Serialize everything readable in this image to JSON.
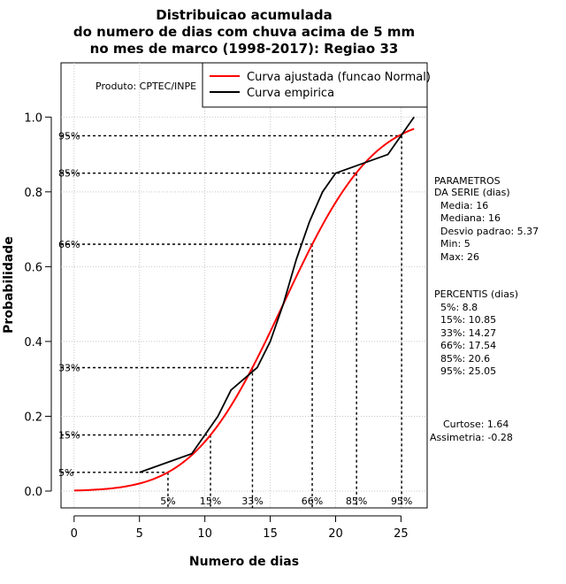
{
  "chart_data": {
    "type": "line",
    "title_lines": [
      "Distribuicao acumulada",
      "do numero de dias com chuva acima de 5 mm",
      "no mes de marco (1998-2017): Regiao 33"
    ],
    "xlabel": "Numero de dias",
    "ylabel": "Probabilidade",
    "xlim": [
      -1,
      27
    ],
    "ylim": [
      -0.045,
      1.145
    ],
    "xticks": [
      0,
      5,
      10,
      15,
      20,
      25
    ],
    "yticks": [
      0.0,
      0.2,
      0.4,
      0.6,
      0.8,
      1.0
    ],
    "xtick_labels": [
      "0",
      "5",
      "10",
      "15",
      "20",
      "25"
    ],
    "ytick_labels": [
      "0.0",
      "0.2",
      "0.4",
      "0.6",
      "0.8",
      "1.0"
    ],
    "producer": "Produto: CPTEC/INPE",
    "legend": [
      {
        "label": "Curva ajustada (funcao Normal)",
        "color": "#ff0000"
      },
      {
        "label": "Curva empirica",
        "color": "#000000"
      }
    ],
    "normal": {
      "mean": 16,
      "sd": 5.37,
      "x_start": 0,
      "x_end": 26
    },
    "empirical": {
      "x": [
        5,
        9,
        10,
        11,
        12,
        14,
        15,
        16,
        17,
        18,
        19,
        20,
        24,
        25,
        26
      ],
      "y": [
        0.05,
        0.1,
        0.15,
        0.2,
        0.27,
        0.33,
        0.4,
        0.5,
        0.62,
        0.72,
        0.8,
        0.85,
        0.9,
        0.95,
        1.0
      ]
    },
    "percentiles": [
      {
        "p": 0.05,
        "x": 7.18,
        "pct_label": "5%"
      },
      {
        "p": 0.15,
        "x": 10.43,
        "pct_label": "15%"
      },
      {
        "p": 0.33,
        "x": 13.64,
        "pct_label": "33%"
      },
      {
        "p": 0.66,
        "x": 18.21,
        "pct_label": "66%"
      },
      {
        "p": 0.85,
        "x": 21.6,
        "pct_label": "85%"
      },
      {
        "p": 0.95,
        "x": 25.05,
        "pct_label": "95%"
      }
    ],
    "params_heading": [
      "PARAMETROS",
      "DA SERIE (dias)"
    ],
    "params": [
      "Media: 16",
      "Mediana: 16",
      "Desvio padrao: 5.37",
      "Min: 5",
      "Max: 26"
    ],
    "percentis_heading": "PERCENTIS (dias)",
    "percentis": [
      "5%: 8.8",
      "15%: 10.85",
      "33%: 14.27",
      "66%: 17.54",
      "85%: 20.6",
      "95%: 25.05"
    ],
    "curtose": "Curtose: 1.64",
    "assimetria": "Assimetria: -0.28"
  }
}
